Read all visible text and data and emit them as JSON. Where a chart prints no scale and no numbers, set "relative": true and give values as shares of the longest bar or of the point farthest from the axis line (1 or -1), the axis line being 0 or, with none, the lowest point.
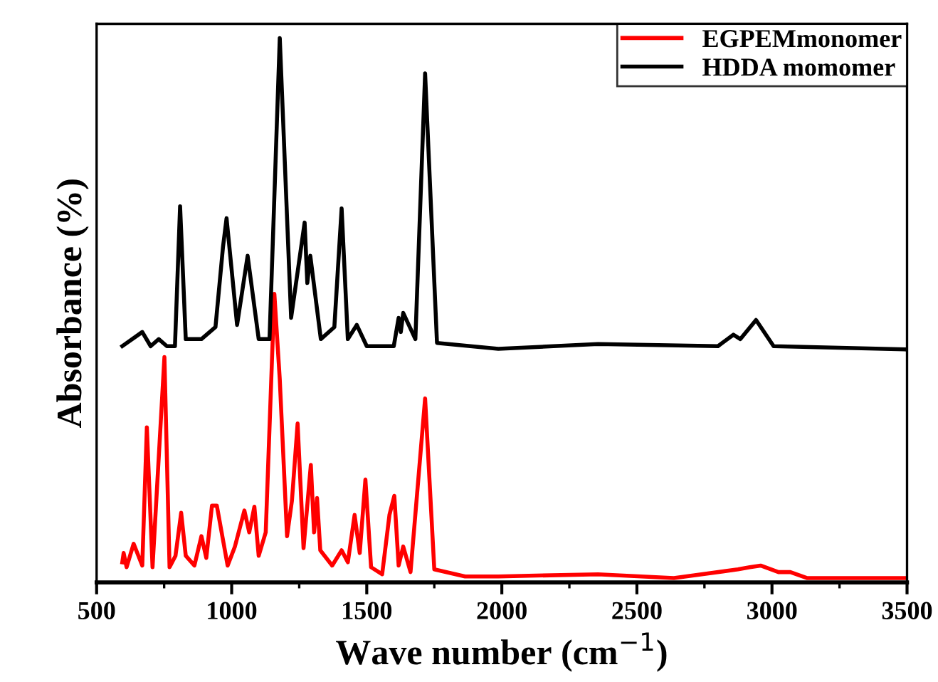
{
  "chart_data": {
    "type": "line",
    "xlabel": "Wave number (cm$^{−1}$)",
    "ylabel": "Absorbance (%)",
    "relative": true,
    "tick_labels": "x",
    "xlim": [
      500,
      3500
    ],
    "xticks": [
      500,
      1000,
      1500,
      2000,
      2500,
      3000,
      3500
    ],
    "legend": "top right",
    "grid": false,
    "marker": "none",
    "line_style": "solid",
    "series": [
      {
        "name": "EGPEMmonomer",
        "color": "#ff0000",
        "x": [
          595,
          600,
          611,
          637,
          669,
          686,
          707,
          751,
          770,
          792,
          813,
          830,
          862,
          888,
          906,
          927,
          945,
          985,
          1012,
          1047,
          1065,
          1084,
          1100,
          1126,
          1158,
          1178,
          1205,
          1223,
          1244,
          1266,
          1293,
          1305,
          1316,
          1328,
          1372,
          1407,
          1430,
          1455,
          1474,
          1495,
          1516,
          1557,
          1584,
          1602,
          1618,
          1635,
          1662,
          1716,
          1750,
          1864,
          1987,
          2356,
          2637,
          2874,
          2918,
          2958,
          3024,
          3068,
          3131,
          3498
        ],
        "values": [
          0.037,
          0.054,
          0.028,
          0.071,
          0.031,
          0.285,
          0.028,
          0.414,
          0.028,
          0.049,
          0.128,
          0.049,
          0.031,
          0.085,
          0.045,
          0.141,
          0.141,
          0.031,
          0.066,
          0.132,
          0.092,
          0.139,
          0.049,
          0.092,
          0.53,
          0.373,
          0.085,
          0.15,
          0.292,
          0.063,
          0.216,
          0.092,
          0.155,
          0.059,
          0.031,
          0.059,
          0.037,
          0.124,
          0.054,
          0.189,
          0.028,
          0.015,
          0.124,
          0.159,
          0.031,
          0.066,
          0.019,
          0.338,
          0.024,
          0.011,
          0.011,
          0.015,
          0.008,
          0.024,
          0.028,
          0.031,
          0.019,
          0.019,
          0.008,
          0.008
        ]
      },
      {
        "name": "HDDA momomer",
        "color": "#000000",
        "x": [
          595,
          669,
          700,
          730,
          760,
          790,
          809,
          830,
          888,
          940,
          968,
          981,
          1020,
          1059,
          1100,
          1140,
          1178,
          1220,
          1270,
          1280,
          1291,
          1330,
          1380,
          1407,
          1430,
          1463,
          1500,
          1600,
          1618,
          1626,
          1635,
          1680,
          1716,
          1760,
          1987,
          2356,
          2800,
          2857,
          2883,
          2941,
          3006,
          3498
        ],
        "values": [
          0.434,
          0.46,
          0.434,
          0.447,
          0.434,
          0.434,
          0.691,
          0.447,
          0.447,
          0.469,
          0.617,
          0.669,
          0.473,
          0.6,
          0.447,
          0.447,
          1.0,
          0.486,
          0.661,
          0.55,
          0.6,
          0.447,
          0.469,
          0.687,
          0.447,
          0.473,
          0.434,
          0.434,
          0.486,
          0.46,
          0.495,
          0.447,
          0.935,
          0.44,
          0.429,
          0.438,
          0.434,
          0.455,
          0.447,
          0.482,
          0.434,
          0.428
        ]
      }
    ]
  }
}
